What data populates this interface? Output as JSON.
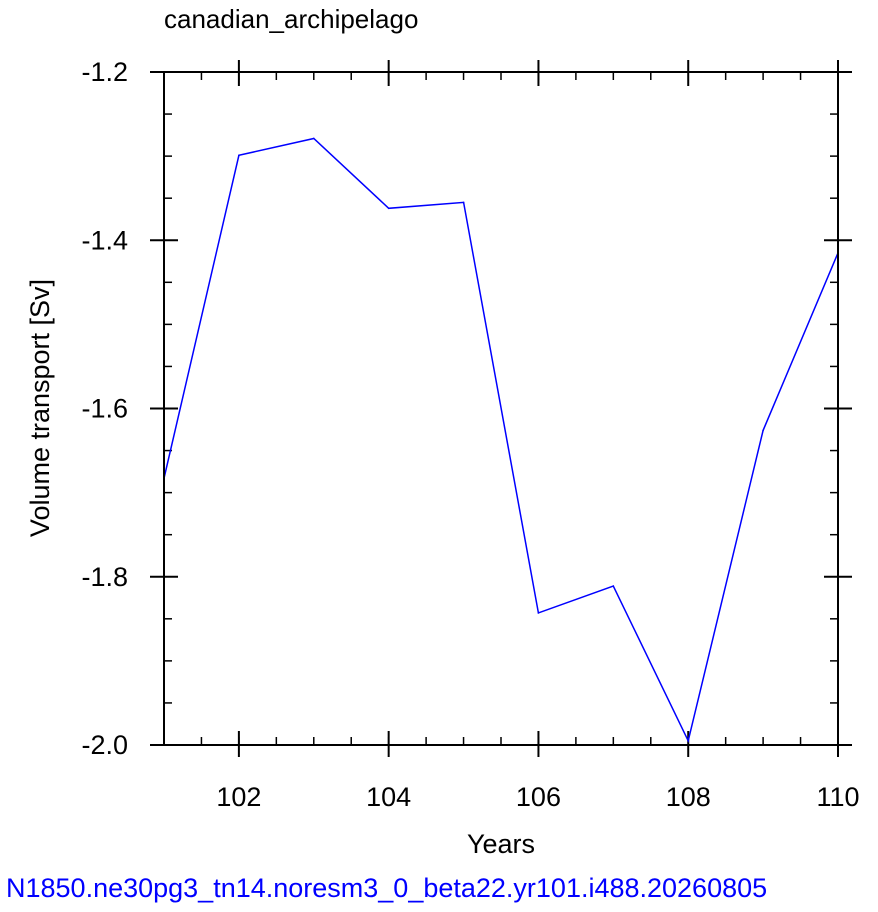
{
  "chart_data": {
    "type": "line",
    "title": "canadian_archipelago",
    "xlabel": "Years",
    "ylabel": "Volume transport [Sv]",
    "caption": "N1850.ne30pg3_tn14.noresm3_0_beta22.yr101.i488.20260805",
    "xlim": [
      101,
      110
    ],
    "ylim": [
      -2.0,
      -1.2
    ],
    "x_ticks": [
      102,
      104,
      106,
      108,
      110
    ],
    "x_tick_labels": [
      "102",
      "104",
      "106",
      "108",
      "110"
    ],
    "y_ticks": [
      -1.2,
      -1.4,
      -1.6,
      -1.8,
      -2.0
    ],
    "y_tick_labels": [
      "-1.2",
      "-1.4",
      "-1.6",
      "-1.8",
      "-2.0"
    ],
    "grid": false,
    "series": [
      {
        "color": "#0000ff",
        "x": [
          101,
          102,
          103,
          104,
          105,
          106,
          107,
          108,
          109,
          110
        ],
        "values": [
          -1.683,
          -1.299,
          -1.279,
          -1.362,
          -1.355,
          -1.843,
          -1.811,
          -1.995,
          -1.626,
          -1.415
        ]
      }
    ]
  }
}
